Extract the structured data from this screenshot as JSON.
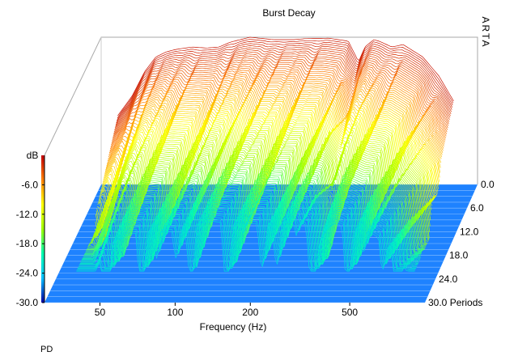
{
  "window": {
    "corner_label": "PD",
    "watermark": "ARTA"
  },
  "chart_data": {
    "type": "area",
    "subtype": "3d-waterfall",
    "title": "Burst Decay",
    "xlabel": "Frequency (Hz)",
    "xscale": "log",
    "xlim": [
      30,
      1000
    ],
    "x_ticks": [
      50,
      100,
      200,
      500
    ],
    "x_tick_labels": [
      "50",
      "100",
      "200",
      "500"
    ],
    "z_label": "dB",
    "zlim": [
      -30,
      0
    ],
    "z_ticks": [
      -6,
      -12,
      -18,
      -24,
      -30
    ],
    "z_tick_labels": [
      "-6.0",
      "-12.0",
      "-18.0",
      "-24.0",
      "-30.0"
    ],
    "depth_label": "Periods",
    "depth_ticks": [
      0,
      6,
      12,
      18,
      24,
      30
    ],
    "depth_tick_labels": [
      "0.0",
      "6.0",
      "12.0",
      "18.0",
      "24.0",
      "30.0 Periods"
    ],
    "colormap": [
      "#0000a0",
      "#00c0ff",
      "#00ffb0",
      "#a0ff00",
      "#ffff00",
      "#ff8000",
      "#c00000"
    ],
    "floor_color": "#1e82ff",
    "grid": false,
    "legend": "colorbar-left",
    "profile": {
      "x": [
        35,
        40,
        45,
        50,
        55,
        60,
        70,
        80,
        90,
        100,
        120,
        150,
        180,
        200,
        250,
        300,
        330,
        350,
        380,
        400,
        450,
        500,
        600,
        700,
        800
      ],
      "y": [
        -16,
        -12,
        -7,
        -4,
        -3,
        -2.5,
        -2,
        -2.2,
        -2,
        -1,
        0,
        -0.5,
        -0.5,
        -0.3,
        -0.2,
        -0.8,
        -5,
        -2,
        -0.5,
        -0.8,
        -2,
        -1.5,
        -4,
        -8,
        -13
      ]
    }
  }
}
